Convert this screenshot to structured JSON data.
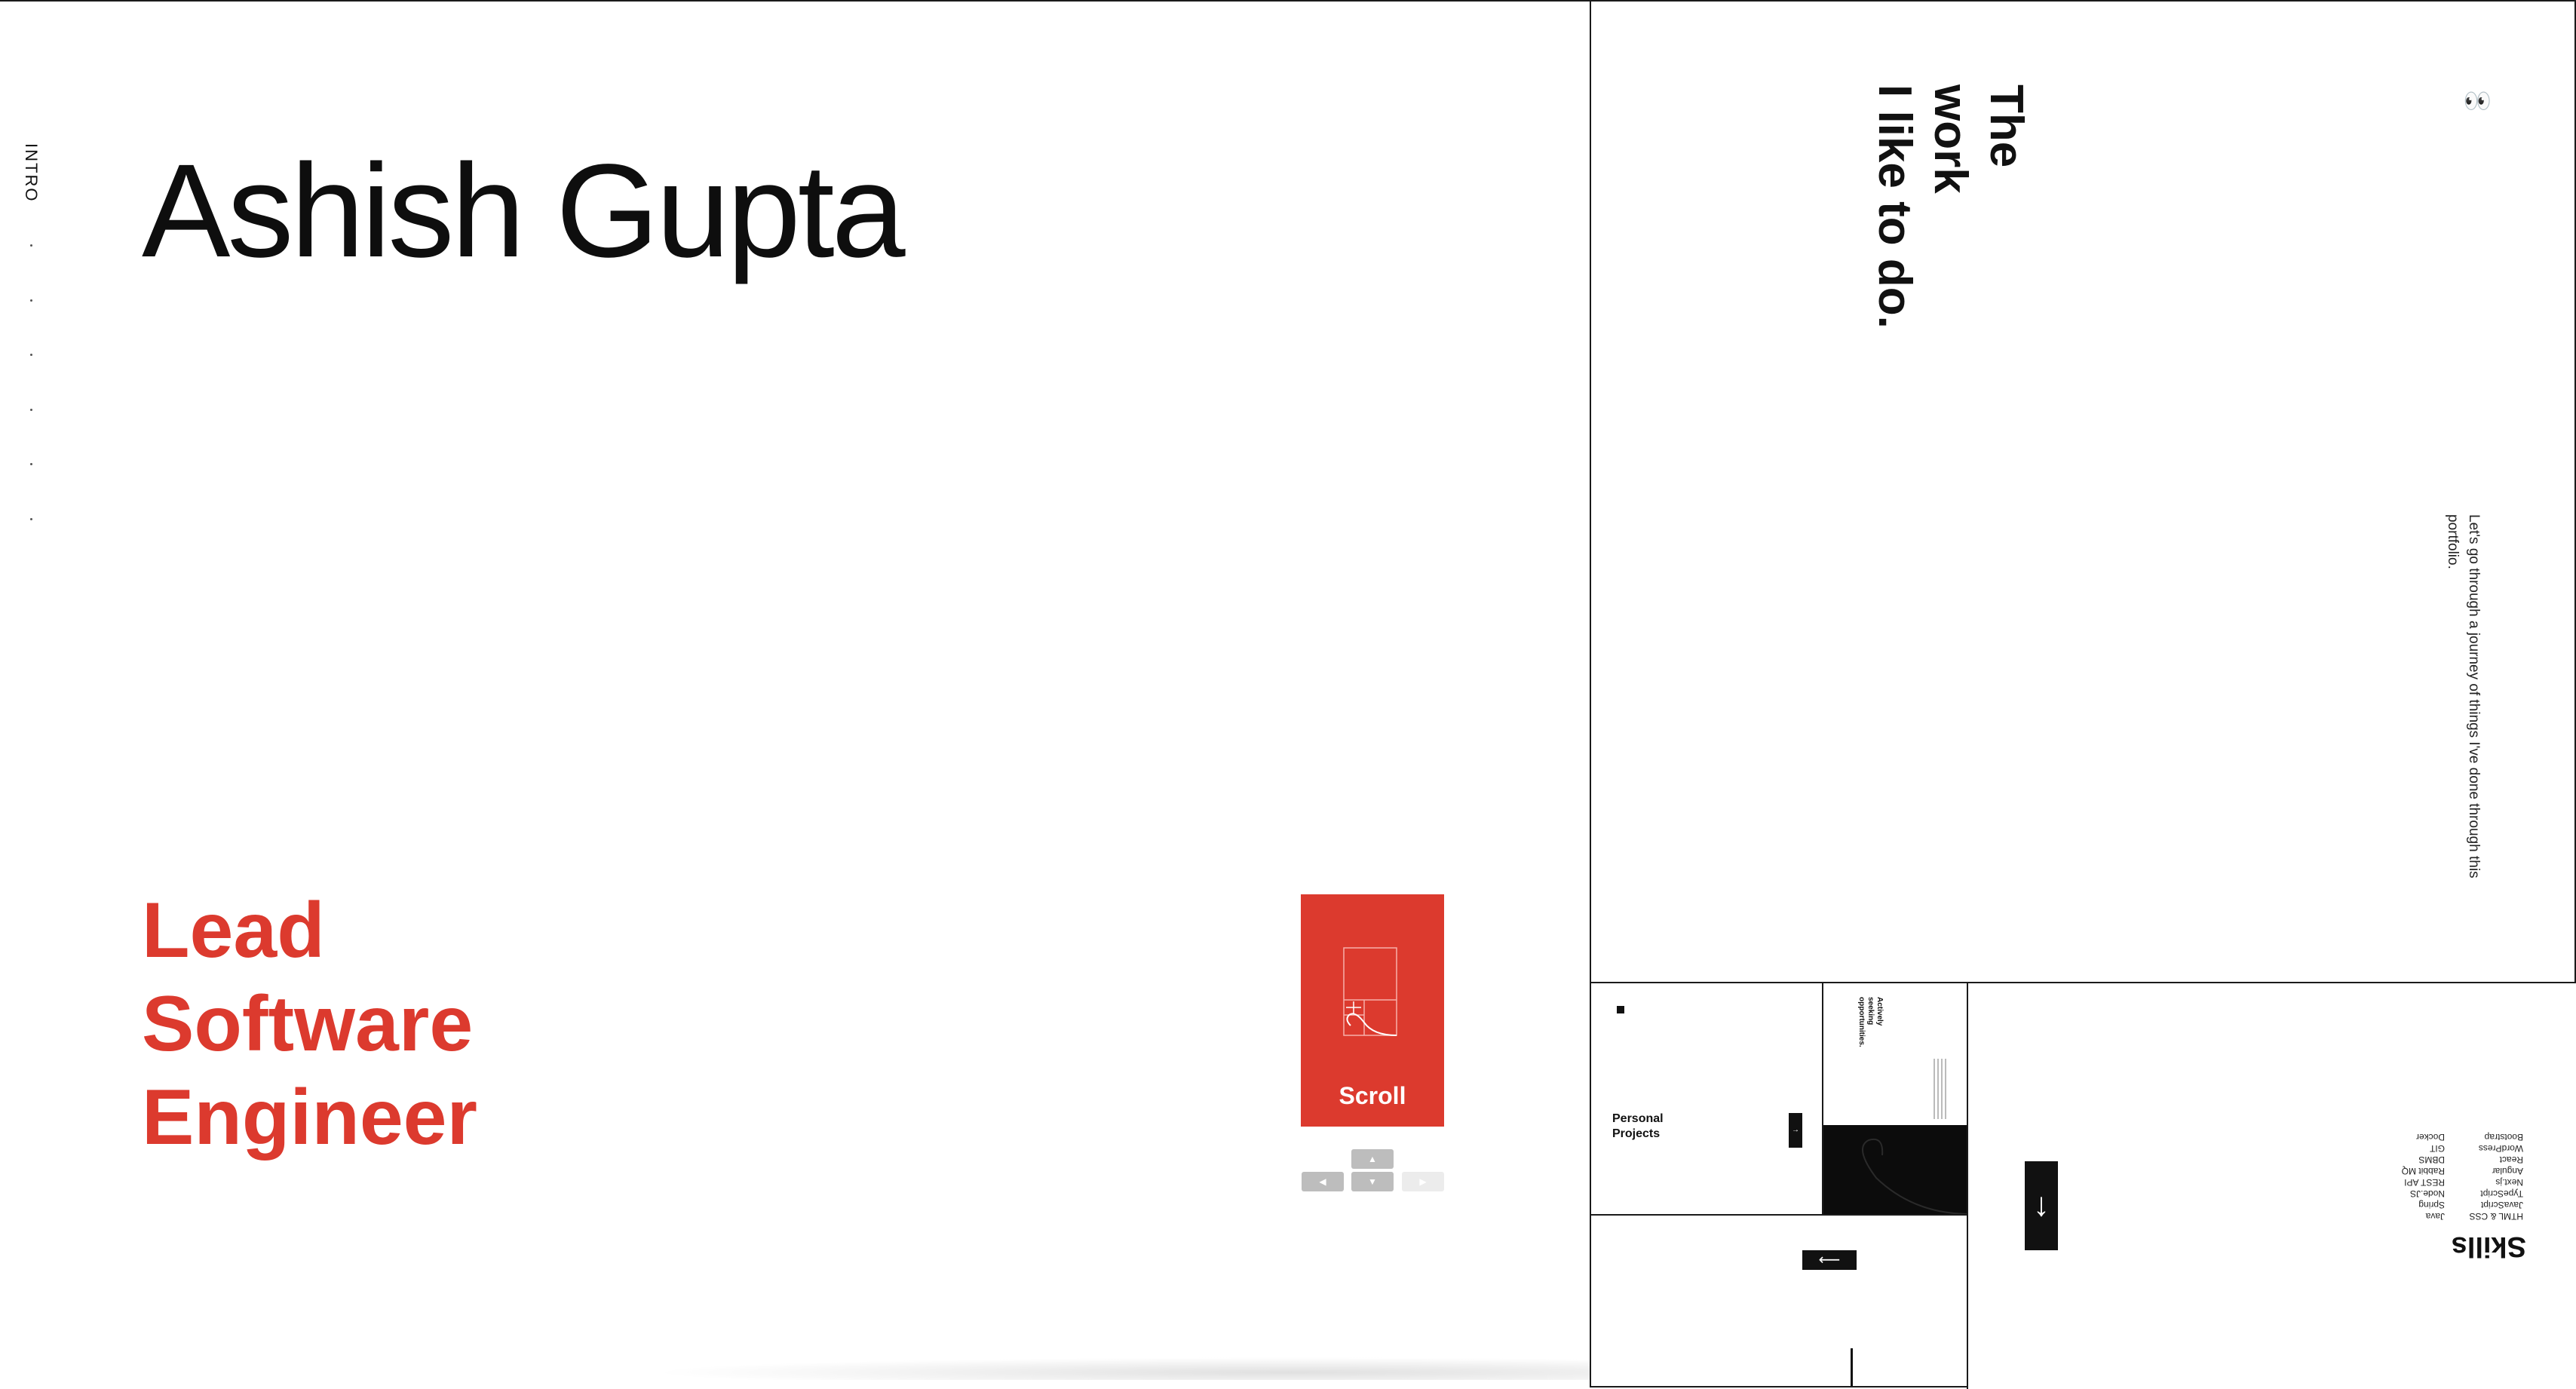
{
  "intro": {
    "nav_label": "INTRO",
    "name": "Ashish Gupta",
    "role_lines": [
      "Lead",
      "Software",
      "Engineer"
    ],
    "scroll_label": "Scroll",
    "accent_color": "#dc3a2e",
    "keys": {
      "up": "▲",
      "left": "◀",
      "down": "▼",
      "right": "▶"
    }
  },
  "work": {
    "title_lines": [
      "The",
      "work",
      "I like to do."
    ],
    "eyes_icon": "👀",
    "description": "Let's go through a journey of things I've done through this portfolio."
  },
  "projects": {
    "title_lines": [
      "Personal",
      "Projects"
    ],
    "arrow": "→"
  },
  "opportunities": {
    "title_lines": [
      "Actively",
      "seeking",
      "opportunities."
    ]
  },
  "contact": {
    "arrow": "⟵"
  },
  "skills": {
    "title": "Skills",
    "column_a": [
      "HTML & CSS",
      "JavaScript",
      "TypeScript",
      "Next.js",
      "Angular",
      "React",
      "WordPress",
      "Bootstrap"
    ],
    "column_b": [
      "Java",
      "Spring",
      "Node.JS",
      "REST API",
      "Rabbit MQ",
      "DBMS",
      "GIT",
      "Docker"
    ],
    "arrow": "↓"
  }
}
